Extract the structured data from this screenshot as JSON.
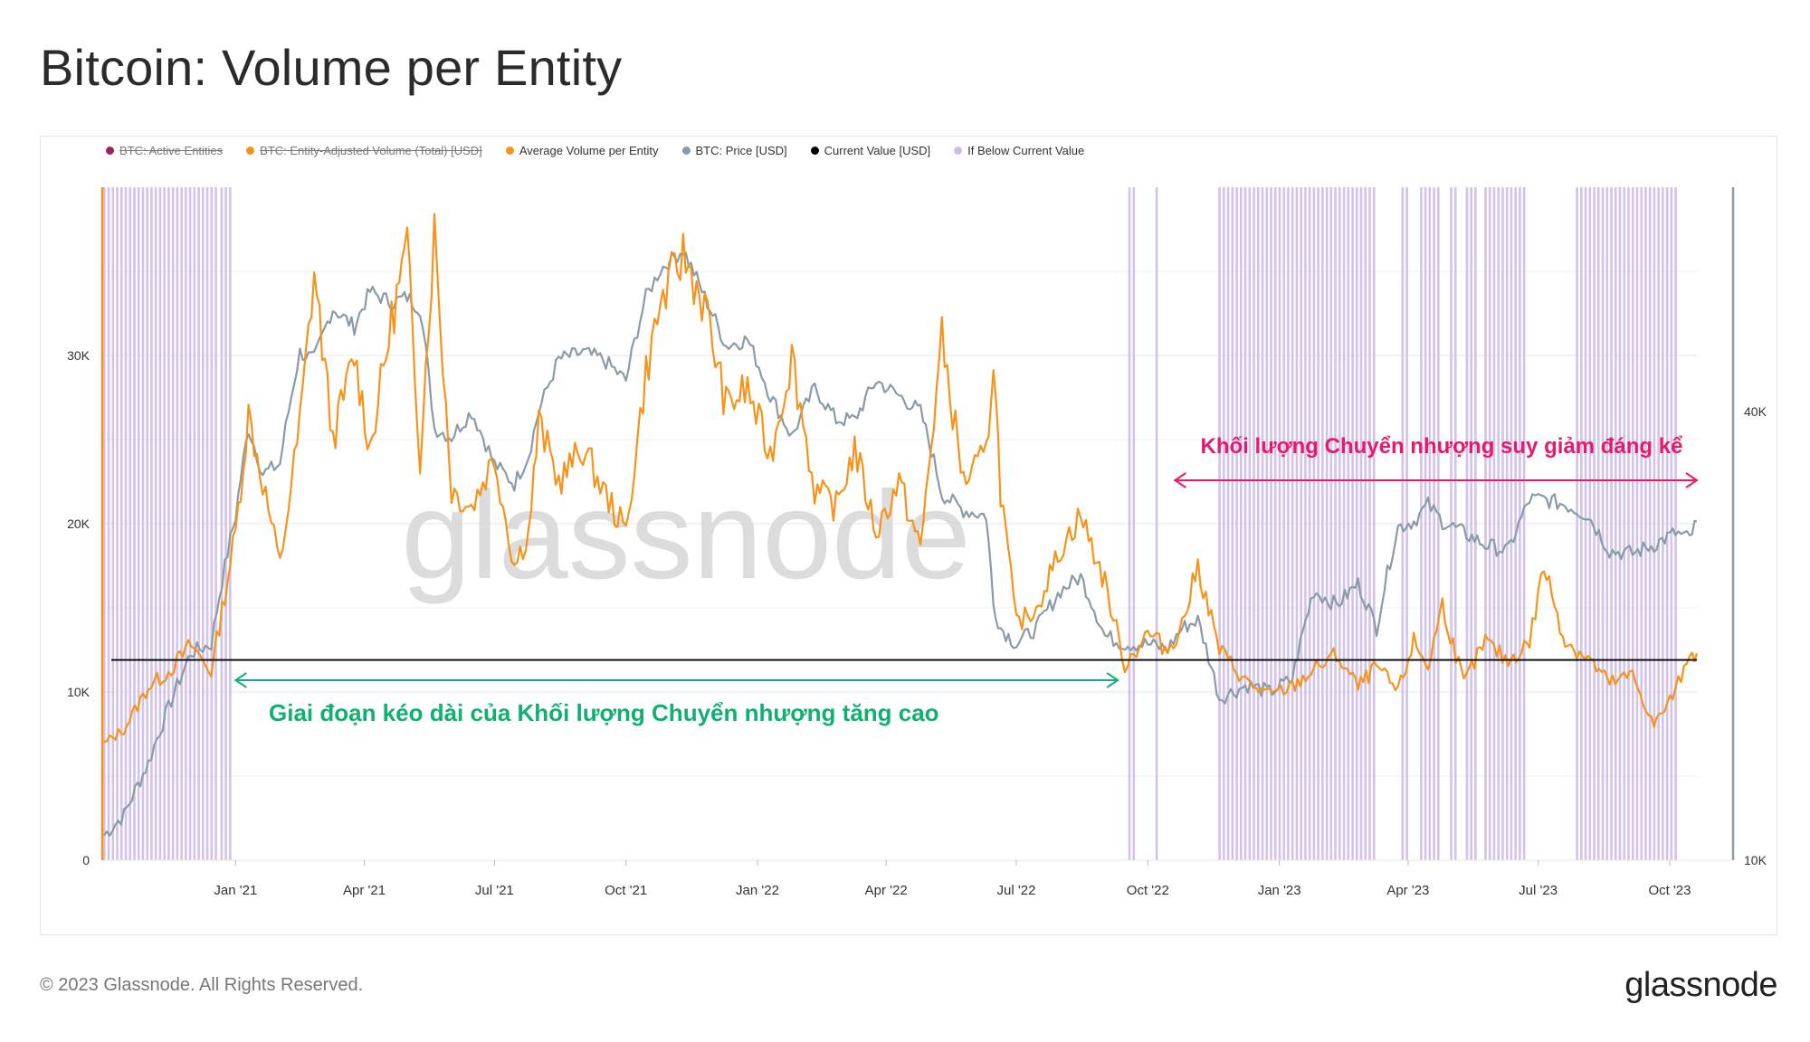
{
  "title": "Bitcoin: Volume per Entity",
  "footer": {
    "copyright": "© 2023 Glassnode. All Rights Reserved.",
    "logo": "glassnode"
  },
  "watermark": "glassnode",
  "colors": {
    "avg_volume": "#f7931a",
    "price": "#8a9ba8",
    "current_value": "#000000",
    "below_band": "#cdbde9",
    "active_entities": "#9b2458",
    "green_annotation": "#10b070",
    "pink_annotation": "#e8196c"
  },
  "chart_data": {
    "type": "line",
    "legend": [
      {
        "label": "BTC: Active Entities",
        "color": "#9b2458",
        "disabled": true
      },
      {
        "label": "BTC: Entity-Adjusted Volume (Total) [USD]",
        "color": "#f7931a",
        "disabled": true
      },
      {
        "label": "Average Volume per Entity",
        "color": "#f7931a",
        "disabled": false
      },
      {
        "label": "BTC: Price [USD]",
        "color": "#8a9ba8",
        "disabled": false
      },
      {
        "label": "Current Value [USD]",
        "color": "#000000",
        "disabled": false
      },
      {
        "label": "If Below Current Value",
        "color": "#cdbde9",
        "disabled": false
      }
    ],
    "x_ticks": [
      "Jan '21",
      "Apr '21",
      "Jul '21",
      "Oct '21",
      "Jan '22",
      "Apr '22",
      "Jul '22",
      "Oct '22",
      "Jan '23",
      "Apr '23",
      "Jul '23",
      "Oct '23"
    ],
    "x_tick_dates": [
      "2021-01-01",
      "2021-04-01",
      "2021-07-01",
      "2021-10-01",
      "2022-01-01",
      "2022-04-01",
      "2022-07-01",
      "2022-10-01",
      "2023-01-01",
      "2023-04-01",
      "2023-07-01",
      "2023-10-01"
    ],
    "x_range": [
      "2020-10-01",
      "2023-10-20"
    ],
    "y_left": {
      "ticks": [
        "0",
        "10K",
        "20K",
        "30K"
      ],
      "tick_values": [
        0,
        10000,
        20000,
        30000
      ],
      "range": [
        0,
        40000
      ]
    },
    "y_right": {
      "scale": "log",
      "ticks": [
        "10K",
        "40K"
      ],
      "tick_values": [
        10000,
        40000
      ],
      "range": [
        10000,
        80000
      ]
    },
    "current_value": 11900,
    "series": [
      {
        "name": "Average Volume per Entity",
        "axis": "left",
        "points": [
          [
            "2020-10-01",
            6900
          ],
          [
            "2020-10-15",
            7800
          ],
          [
            "2020-11-01",
            10300
          ],
          [
            "2020-11-15",
            11200
          ],
          [
            "2020-12-01",
            12800
          ],
          [
            "2020-12-15",
            11200
          ],
          [
            "2021-01-01",
            19500
          ],
          [
            "2021-01-10",
            26500
          ],
          [
            "2021-01-20",
            22500
          ],
          [
            "2021-02-01",
            17500
          ],
          [
            "2021-02-15",
            26000
          ],
          [
            "2021-02-25",
            35000
          ],
          [
            "2021-03-10",
            25000
          ],
          [
            "2021-03-25",
            30000
          ],
          [
            "2021-04-05",
            24500
          ],
          [
            "2021-04-20",
            32000
          ],
          [
            "2021-05-01",
            36500
          ],
          [
            "2021-05-10",
            24000
          ],
          [
            "2021-05-20",
            37500
          ],
          [
            "2021-06-01",
            22000
          ],
          [
            "2021-06-15",
            21000
          ],
          [
            "2021-07-01",
            24000
          ],
          [
            "2021-07-15",
            17500
          ],
          [
            "2021-07-25",
            19500
          ],
          [
            "2021-08-01",
            26000
          ],
          [
            "2021-08-15",
            22500
          ],
          [
            "2021-09-01",
            24500
          ],
          [
            "2021-09-15",
            22000
          ],
          [
            "2021-10-01",
            19500
          ],
          [
            "2021-10-15",
            29000
          ],
          [
            "2021-10-25",
            33000
          ],
          [
            "2021-11-10",
            36000
          ],
          [
            "2021-11-25",
            33000
          ],
          [
            "2021-12-10",
            27000
          ],
          [
            "2021-12-25",
            28000
          ],
          [
            "2022-01-10",
            24000
          ],
          [
            "2022-01-25",
            30000
          ],
          [
            "2022-02-10",
            22000
          ],
          [
            "2022-02-25",
            21000
          ],
          [
            "2022-03-10",
            24500
          ],
          [
            "2022-03-25",
            19500
          ],
          [
            "2022-04-10",
            22500
          ],
          [
            "2022-04-25",
            18500
          ],
          [
            "2022-05-10",
            31000
          ],
          [
            "2022-05-25",
            22500
          ],
          [
            "2022-06-10",
            24000
          ],
          [
            "2022-06-15",
            30000
          ],
          [
            "2022-06-20",
            22000
          ],
          [
            "2022-07-01",
            14000
          ],
          [
            "2022-07-15",
            15000
          ],
          [
            "2022-08-01",
            18500
          ],
          [
            "2022-08-15",
            20500
          ],
          [
            "2022-09-01",
            16500
          ],
          [
            "2022-09-15",
            11600
          ],
          [
            "2022-10-01",
            13500
          ],
          [
            "2022-10-15",
            12500
          ],
          [
            "2022-10-25",
            14000
          ],
          [
            "2022-11-05",
            17500
          ],
          [
            "2022-11-20",
            12500
          ],
          [
            "2022-12-10",
            10500
          ],
          [
            "2022-12-25",
            9800
          ],
          [
            "2023-01-10",
            10300
          ],
          [
            "2023-01-25",
            11300
          ],
          [
            "2023-02-10",
            12200
          ],
          [
            "2023-02-25",
            10300
          ],
          [
            "2023-03-10",
            11500
          ],
          [
            "2023-03-25",
            10000
          ],
          [
            "2023-04-05",
            13000
          ],
          [
            "2023-04-15",
            11500
          ],
          [
            "2023-04-25",
            15200
          ],
          [
            "2023-05-10",
            10500
          ],
          [
            "2023-05-25",
            13000
          ],
          [
            "2023-06-10",
            11800
          ],
          [
            "2023-06-25",
            13000
          ],
          [
            "2023-07-05",
            17500
          ],
          [
            "2023-07-20",
            13000
          ],
          [
            "2023-08-05",
            12000
          ],
          [
            "2023-08-20",
            10500
          ],
          [
            "2023-09-05",
            11000
          ],
          [
            "2023-09-20",
            8000
          ],
          [
            "2023-10-05",
            10000
          ],
          [
            "2023-10-15",
            12500
          ],
          [
            "2023-10-20",
            12300
          ]
        ]
      },
      {
        "name": "BTC: Price [USD]",
        "axis": "right",
        "points": [
          [
            "2020-10-01",
            10800
          ],
          [
            "2020-10-15",
            11500
          ],
          [
            "2020-11-01",
            13500
          ],
          [
            "2020-11-15",
            16000
          ],
          [
            "2020-12-01",
            19000
          ],
          [
            "2020-12-15",
            19500
          ],
          [
            "2021-01-01",
            29000
          ],
          [
            "2021-01-10",
            38000
          ],
          [
            "2021-01-20",
            33000
          ],
          [
            "2021-02-01",
            34000
          ],
          [
            "2021-02-15",
            48000
          ],
          [
            "2021-02-25",
            47000
          ],
          [
            "2021-03-10",
            55000
          ],
          [
            "2021-03-25",
            52000
          ],
          [
            "2021-04-05",
            58000
          ],
          [
            "2021-04-20",
            56000
          ],
          [
            "2021-05-01",
            57000
          ],
          [
            "2021-05-10",
            55000
          ],
          [
            "2021-05-20",
            38000
          ],
          [
            "2021-06-01",
            37000
          ],
          [
            "2021-06-15",
            40000
          ],
          [
            "2021-07-01",
            34000
          ],
          [
            "2021-07-15",
            32000
          ],
          [
            "2021-07-25",
            35000
          ],
          [
            "2021-08-01",
            40000
          ],
          [
            "2021-08-15",
            47000
          ],
          [
            "2021-09-01",
            48000
          ],
          [
            "2021-09-15",
            47000
          ],
          [
            "2021-10-01",
            44000
          ],
          [
            "2021-10-15",
            57000
          ],
          [
            "2021-10-25",
            62000
          ],
          [
            "2021-11-10",
            66000
          ],
          [
            "2021-11-25",
            57000
          ],
          [
            "2021-12-10",
            49000
          ],
          [
            "2021-12-25",
            50000
          ],
          [
            "2022-01-10",
            42000
          ],
          [
            "2022-01-25",
            37000
          ],
          [
            "2022-02-10",
            43000
          ],
          [
            "2022-02-25",
            39000
          ],
          [
            "2022-03-10",
            39000
          ],
          [
            "2022-03-25",
            44000
          ],
          [
            "2022-04-10",
            42000
          ],
          [
            "2022-04-25",
            40000
          ],
          [
            "2022-05-10",
            31000
          ],
          [
            "2022-05-25",
            29500
          ],
          [
            "2022-06-10",
            29000
          ],
          [
            "2022-06-15",
            22000
          ],
          [
            "2022-06-20",
            20500
          ],
          [
            "2022-07-01",
            19500
          ],
          [
            "2022-07-15",
            20500
          ],
          [
            "2022-08-01",
            23000
          ],
          [
            "2022-08-15",
            24000
          ],
          [
            "2022-09-01",
            20000
          ],
          [
            "2022-09-15",
            19500
          ],
          [
            "2022-10-01",
            19500
          ],
          [
            "2022-10-15",
            19200
          ],
          [
            "2022-10-25",
            20500
          ],
          [
            "2022-11-05",
            21000
          ],
          [
            "2022-11-20",
            16500
          ],
          [
            "2022-12-10",
            17200
          ],
          [
            "2022-12-25",
            16800
          ],
          [
            "2023-01-10",
            17500
          ],
          [
            "2023-01-25",
            23000
          ],
          [
            "2023-02-10",
            22000
          ],
          [
            "2023-02-25",
            23500
          ],
          [
            "2023-03-10",
            20500
          ],
          [
            "2023-03-25",
            28000
          ],
          [
            "2023-04-05",
            28500
          ],
          [
            "2023-04-15",
            30000
          ],
          [
            "2023-04-25",
            28500
          ],
          [
            "2023-05-10",
            27500
          ],
          [
            "2023-05-25",
            26500
          ],
          [
            "2023-06-10",
            26000
          ],
          [
            "2023-06-25",
            30500
          ],
          [
            "2023-07-05",
            30500
          ],
          [
            "2023-07-20",
            30000
          ],
          [
            "2023-08-05",
            29000
          ],
          [
            "2023-08-20",
            26000
          ],
          [
            "2023-09-05",
            25800
          ],
          [
            "2023-09-20",
            26500
          ],
          [
            "2023-10-05",
            27500
          ],
          [
            "2023-10-15",
            27000
          ],
          [
            "2023-10-20",
            28500
          ]
        ]
      }
    ],
    "below_periods": [
      [
        "2020-10-01",
        "2020-12-20"
      ],
      [
        "2020-12-22",
        "2020-12-30"
      ],
      [
        "2022-09-18",
        "2022-09-21"
      ],
      [
        "2022-10-07",
        "2022-10-09"
      ],
      [
        "2022-11-20",
        "2023-03-10"
      ],
      [
        "2023-03-28",
        "2023-04-01"
      ],
      [
        "2023-04-10",
        "2023-04-22"
      ],
      [
        "2023-05-01",
        "2023-05-05"
      ],
      [
        "2023-05-12",
        "2023-05-18"
      ],
      [
        "2023-05-25",
        "2023-06-22"
      ],
      [
        "2023-07-28",
        "2023-10-05"
      ]
    ],
    "annotations": [
      {
        "text": "Giai đoạn kéo dài của Khối lượng Chuyển nhượng tăng cao",
        "from": "2021-01-01",
        "to": "2022-09-10",
        "color": "#10b070"
      },
      {
        "text": "Khối lượng Chuyển nhượng suy giảm đáng kể",
        "from": "2022-10-20",
        "to": "2023-10-20",
        "color": "#e8196c"
      }
    ]
  }
}
